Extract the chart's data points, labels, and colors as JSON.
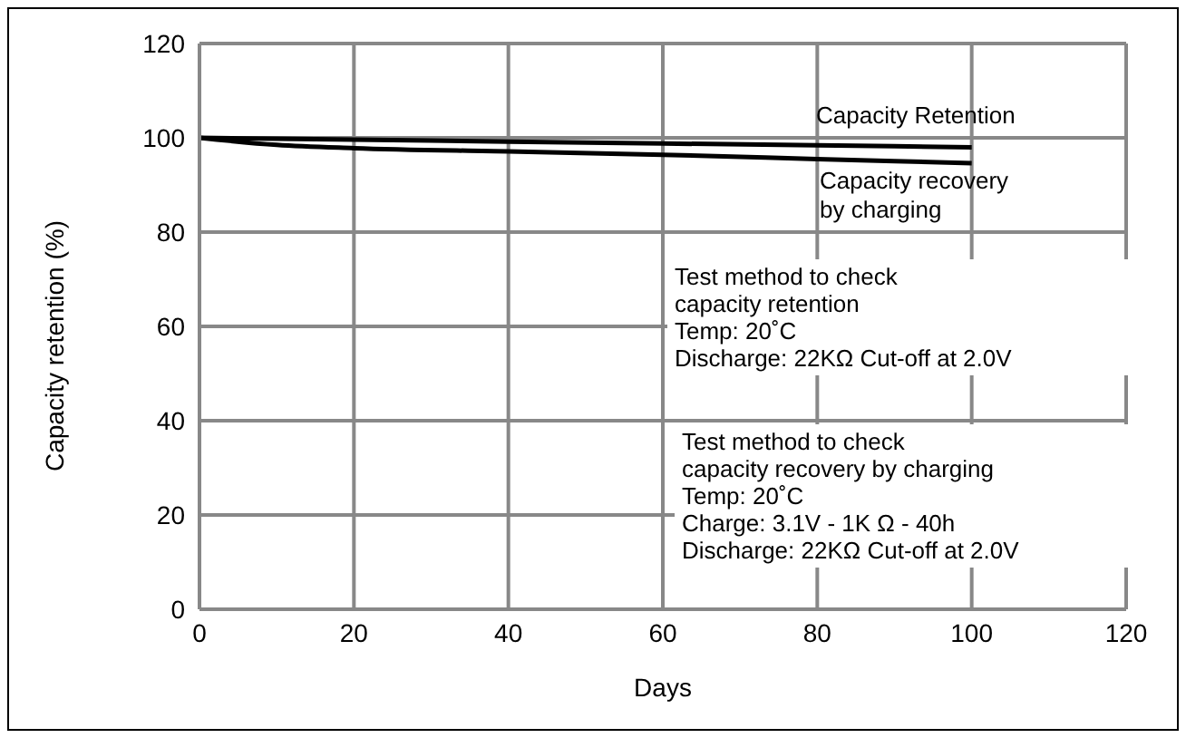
{
  "chart_data": {
    "type": "line",
    "xlabel": "Days",
    "ylabel": "Capacity retention (%)",
    "xlim": [
      0,
      120
    ],
    "xticks": [
      0,
      20,
      40,
      60,
      80,
      100,
      120
    ],
    "ylim": [
      0,
      120
    ],
    "yticks": [
      0,
      20,
      40,
      60,
      80,
      100,
      120
    ],
    "grid": true,
    "legend": false,
    "marker": "none",
    "line_style": "solid",
    "series": [
      {
        "name": "Capacity Retention",
        "color": "#000000",
        "x": [
          0,
          20,
          40,
          60,
          80,
          100
        ],
        "values": [
          100,
          99.6,
          99.2,
          98.8,
          98.4,
          98
        ]
      },
      {
        "name": "Capacity recovery by charging",
        "color": "#000000",
        "x": [
          0,
          10,
          20,
          40,
          60,
          80,
          100
        ],
        "values": [
          100,
          98.5,
          97.8,
          97.1,
          96.4,
          95.5,
          94.6
        ]
      }
    ],
    "annotations": [
      "Test method to check\ncapacity retention\nTemp: 20˚C\nDischarge: 22KΩ  Cut-off at 2.0V",
      "Test method to check\ncapacity recovery by charging\nTemp: 20˚C\nCharge: 3.1V - 1K Ω - 40h\nDischarge: 22KΩ  Cut-off at 2.0V"
    ]
  }
}
